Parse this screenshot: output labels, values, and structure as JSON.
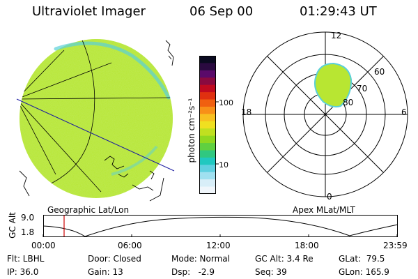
{
  "header": {
    "instrument": "Ultraviolet Imager",
    "date": "06 Sep 00",
    "time": "01:29:43 UT"
  },
  "colorbar": {
    "unit_label": "photon cm⁻²s⁻¹",
    "tick_100": "100",
    "tick_10": "10",
    "colors": [
      "#0a0a20",
      "#2a0a40",
      "#5a0a6a",
      "#8a0a40",
      "#c00a20",
      "#e03010",
      "#f06010",
      "#f89018",
      "#f8c020",
      "#f0e020",
      "#c0e020",
      "#90d820",
      "#60d040",
      "#30c880",
      "#20c8c0",
      "#60d0e0",
      "#a0e0f0",
      "#d8eef8",
      "#f0f6fb"
    ]
  },
  "left_panel": {
    "label": "Geographic Lat/Lon",
    "disk_color": "#b8e632"
  },
  "right_panel": {
    "label": "Apex MLat/MLT",
    "mlt_top": "12",
    "mlt_bottom": "0",
    "mlt_left": "18",
    "mlt_right": "6",
    "lat_60": "60",
    "lat_70": "70",
    "lat_80": "80",
    "oval_color": "#b8e632"
  },
  "altitude_plot": {
    "ylabel": "GC Alt",
    "y_top": "9.0",
    "y_bottom": "1.8",
    "x_ticks": [
      "00:00",
      "06:00",
      "12:00",
      "18:00",
      "23:59"
    ],
    "marker_color": "#cc0000"
  },
  "footer": {
    "flt": "Flt: LBHL",
    "ip": "IP: 36.0",
    "door": "Door: Closed",
    "gain": "Gain: 13",
    "mode": "Mode: Normal",
    "dsp": "Dsp:   -2.9",
    "gcalt": "GC Alt: 3.4 Re",
    "seq": "Seq: 39",
    "glat": "GLat:  79.5",
    "glon": "GLon: 165.9"
  }
}
